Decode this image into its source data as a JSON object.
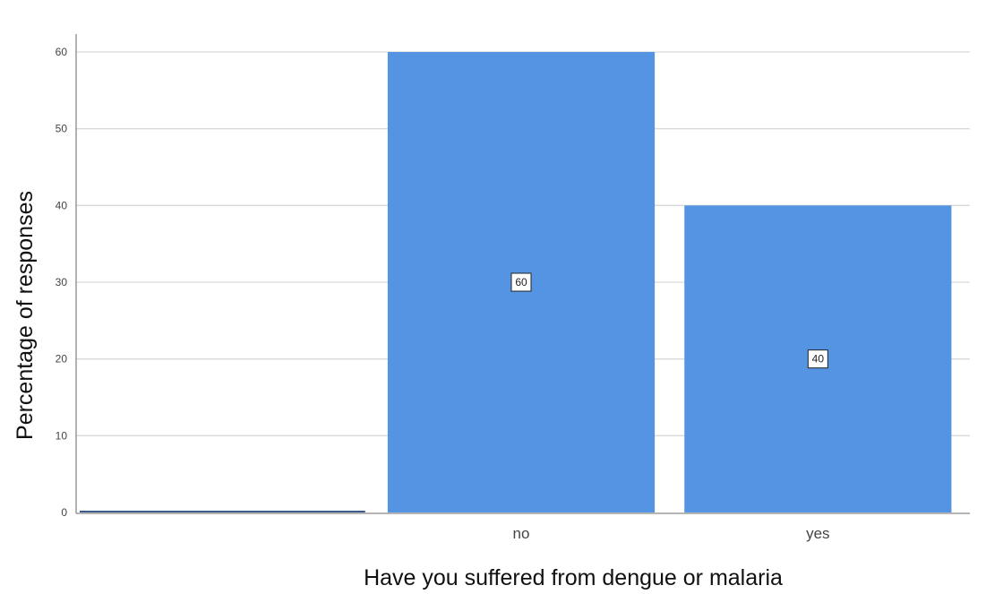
{
  "chart_data": {
    "type": "bar",
    "categories": [
      "",
      "no",
      "yes"
    ],
    "values": [
      0,
      60,
      40
    ],
    "data_labels": [
      "",
      "60",
      "40"
    ],
    "xlabel": "Have you suffered from dengue or malaria",
    "ylabel": "Percentage of responses",
    "ylim": [
      0,
      60
    ],
    "yticks": [
      0,
      10,
      20,
      30,
      40,
      50,
      60
    ],
    "grid": true,
    "legend": "none",
    "colors": {
      "bar": "#5594e2",
      "grid": "#d9d9d9",
      "axis": "#888888",
      "baseline_trace": "#3d5a8a"
    }
  }
}
